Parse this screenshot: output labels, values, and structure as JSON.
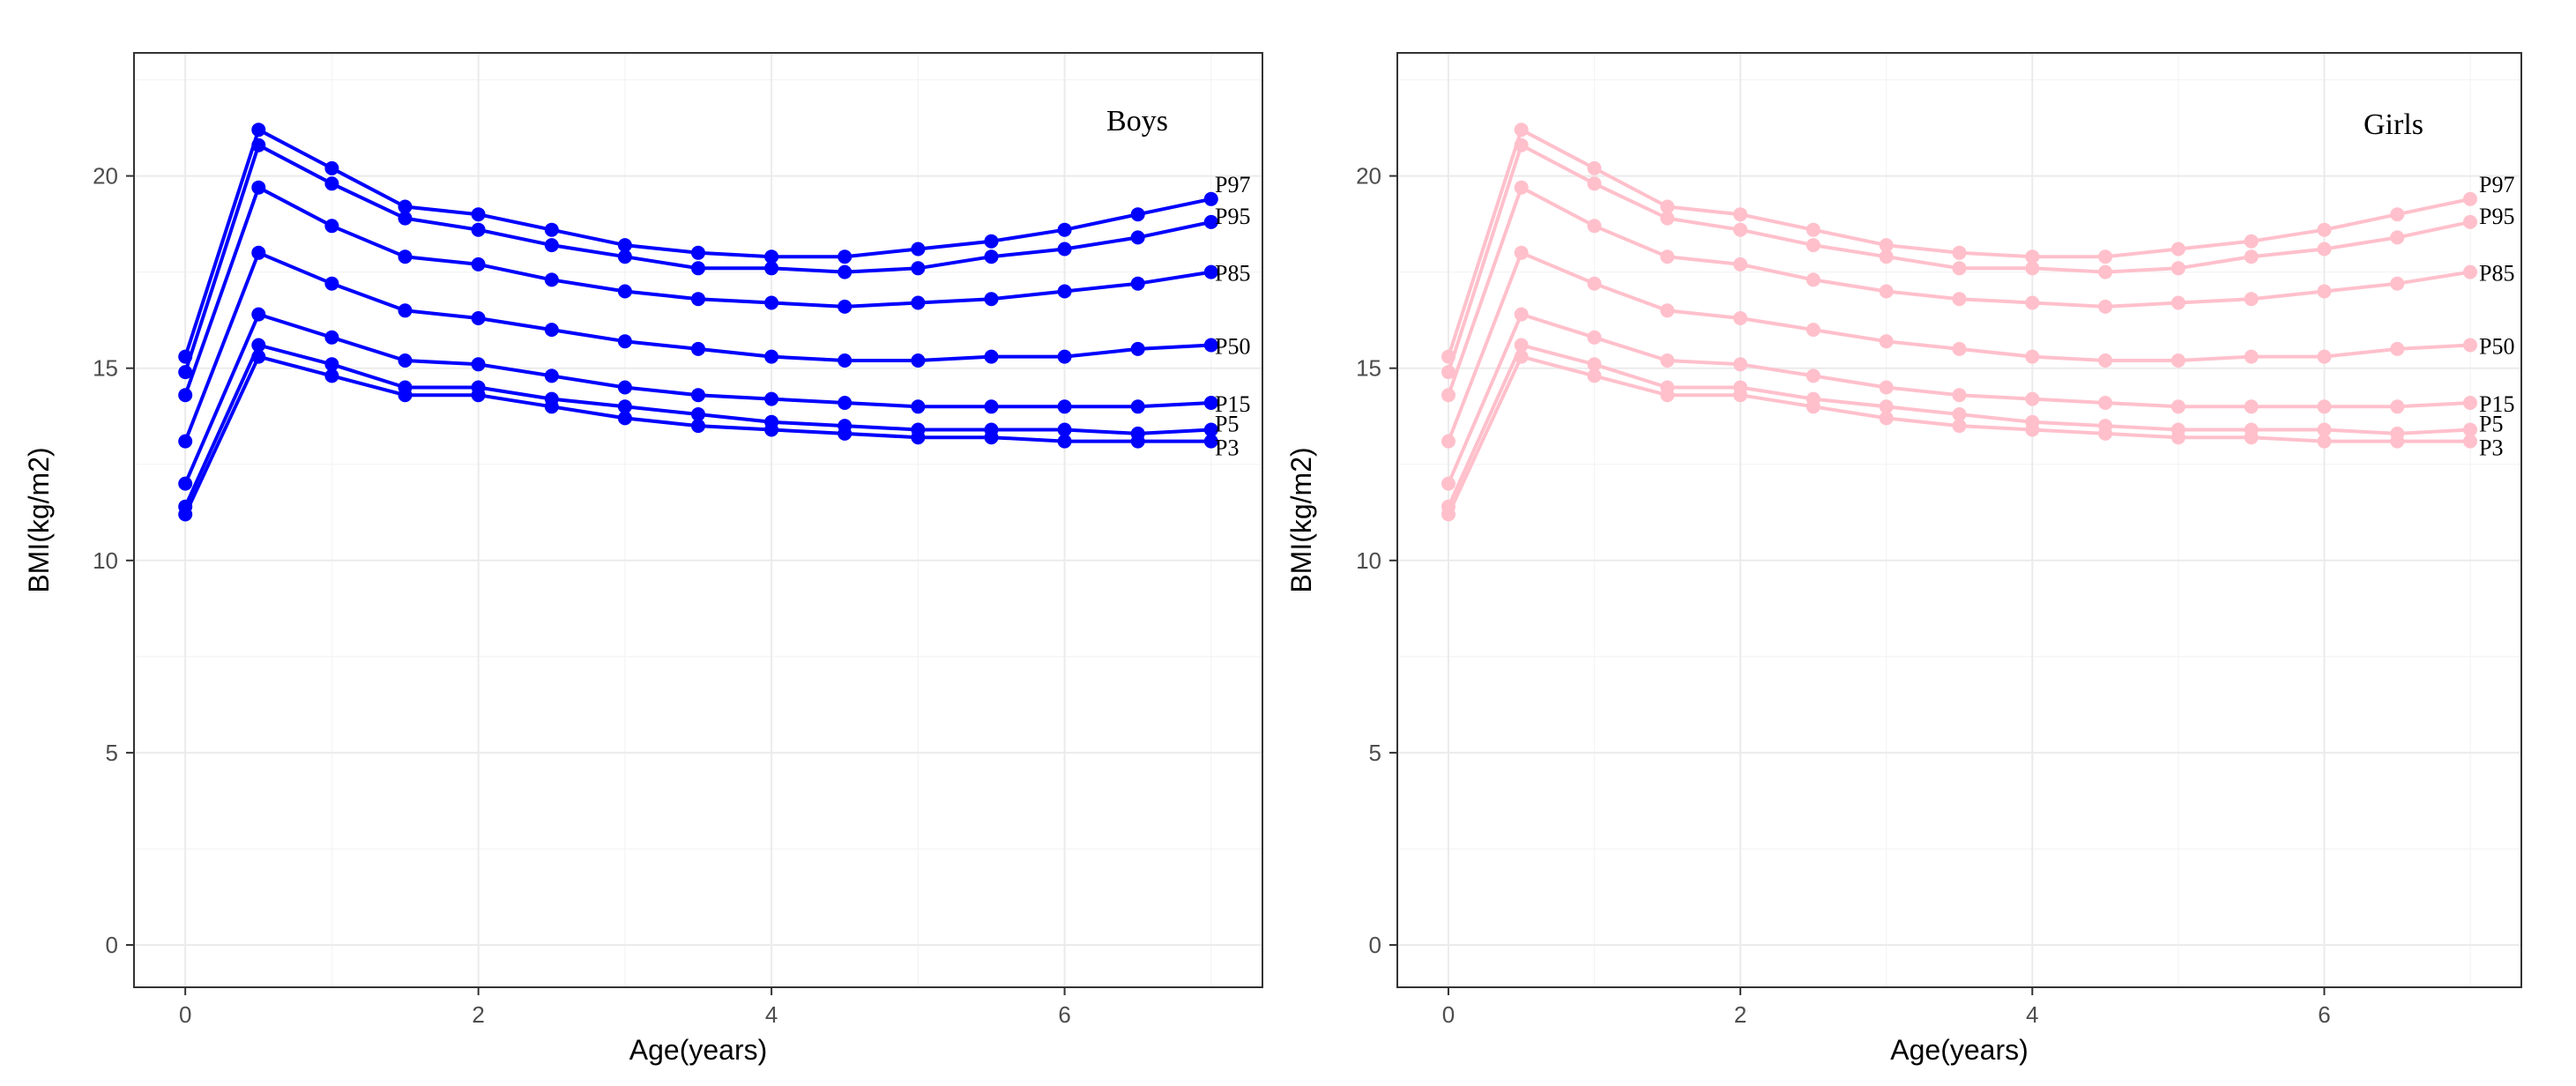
{
  "chart_data": [
    {
      "type": "line",
      "title": "Boys",
      "xlabel": "Age(years)",
      "ylabel": "BMI(kg/m2)",
      "xlim": [
        -0.35,
        7.35
      ],
      "ylim": [
        -1.1,
        23.2
      ],
      "x_ticks": [
        0,
        2,
        4,
        6
      ],
      "y_ticks": [
        0,
        5,
        10,
        15,
        20
      ],
      "color": "#0000ff",
      "x": [
        0,
        0.5,
        1,
        1.5,
        2,
        2.5,
        3,
        3.5,
        4,
        4.5,
        5,
        5.5,
        6,
        6.5,
        7
      ],
      "series": [
        {
          "name": "P97",
          "values": [
            15.3,
            21.2,
            20.2,
            19.2,
            19.0,
            18.6,
            18.2,
            18.0,
            17.9,
            17.9,
            18.1,
            18.3,
            18.6,
            19.0,
            19.4
          ]
        },
        {
          "name": "P95",
          "values": [
            14.9,
            20.8,
            19.8,
            18.9,
            18.6,
            18.2,
            17.9,
            17.6,
            17.6,
            17.5,
            17.6,
            17.9,
            18.1,
            18.4,
            18.8
          ]
        },
        {
          "name": "P85",
          "values": [
            14.3,
            19.7,
            18.7,
            17.9,
            17.7,
            17.3,
            17.0,
            16.8,
            16.7,
            16.6,
            16.7,
            16.8,
            17.0,
            17.2,
            17.5
          ]
        },
        {
          "name": "P50",
          "values": [
            13.1,
            18.0,
            17.2,
            16.5,
            16.3,
            16.0,
            15.7,
            15.5,
            15.3,
            15.2,
            15.2,
            15.3,
            15.3,
            15.5,
            15.6
          ]
        },
        {
          "name": "P15",
          "values": [
            12.0,
            16.4,
            15.8,
            15.2,
            15.1,
            14.8,
            14.5,
            14.3,
            14.2,
            14.1,
            14.0,
            14.0,
            14.0,
            14.0,
            14.1
          ]
        },
        {
          "name": "P5",
          "values": [
            11.4,
            15.6,
            15.1,
            14.5,
            14.5,
            14.2,
            14.0,
            13.8,
            13.6,
            13.5,
            13.4,
            13.4,
            13.4,
            13.3,
            13.4
          ]
        },
        {
          "name": "P3",
          "values": [
            11.2,
            15.3,
            14.8,
            14.3,
            14.3,
            14.0,
            13.7,
            13.5,
            13.4,
            13.3,
            13.2,
            13.2,
            13.1,
            13.1,
            13.1
          ]
        }
      ]
    },
    {
      "type": "line",
      "title": "Girls",
      "xlabel": "Age(years)",
      "ylabel": "BMI(kg/m2)",
      "xlim": [
        -0.35,
        7.35
      ],
      "ylim": [
        -1.1,
        23.2
      ],
      "x_ticks": [
        0,
        2,
        4,
        6
      ],
      "y_ticks": [
        0,
        5,
        10,
        15,
        20
      ],
      "color": "#ffc0cb",
      "x": [
        0,
        0.5,
        1,
        1.5,
        2,
        2.5,
        3,
        3.5,
        4,
        4.5,
        5,
        5.5,
        6,
        6.5,
        7
      ],
      "series": [
        {
          "name": "P97",
          "values": [
            15.3,
            21.2,
            20.2,
            19.2,
            19.0,
            18.6,
            18.2,
            18.0,
            17.9,
            17.9,
            18.1,
            18.3,
            18.6,
            19.0,
            19.4
          ]
        },
        {
          "name": "P95",
          "values": [
            14.9,
            20.8,
            19.8,
            18.9,
            18.6,
            18.2,
            17.9,
            17.6,
            17.6,
            17.5,
            17.6,
            17.9,
            18.1,
            18.4,
            18.8
          ]
        },
        {
          "name": "P85",
          "values": [
            14.3,
            19.7,
            18.7,
            17.9,
            17.7,
            17.3,
            17.0,
            16.8,
            16.7,
            16.6,
            16.7,
            16.8,
            17.0,
            17.2,
            17.5
          ]
        },
        {
          "name": "P50",
          "values": [
            13.1,
            18.0,
            17.2,
            16.5,
            16.3,
            16.0,
            15.7,
            15.5,
            15.3,
            15.2,
            15.2,
            15.3,
            15.3,
            15.5,
            15.6
          ]
        },
        {
          "name": "P15",
          "values": [
            12.0,
            16.4,
            15.8,
            15.2,
            15.1,
            14.8,
            14.5,
            14.3,
            14.2,
            14.1,
            14.0,
            14.0,
            14.0,
            14.0,
            14.1
          ]
        },
        {
          "name": "P5",
          "values": [
            11.4,
            15.6,
            15.1,
            14.5,
            14.5,
            14.2,
            14.0,
            13.8,
            13.6,
            13.5,
            13.4,
            13.4,
            13.4,
            13.3,
            13.4
          ]
        },
        {
          "name": "P3",
          "values": [
            11.2,
            15.3,
            14.8,
            14.3,
            14.3,
            14.0,
            13.7,
            13.5,
            13.4,
            13.3,
            13.2,
            13.2,
            13.1,
            13.1,
            13.1
          ]
        }
      ]
    }
  ]
}
